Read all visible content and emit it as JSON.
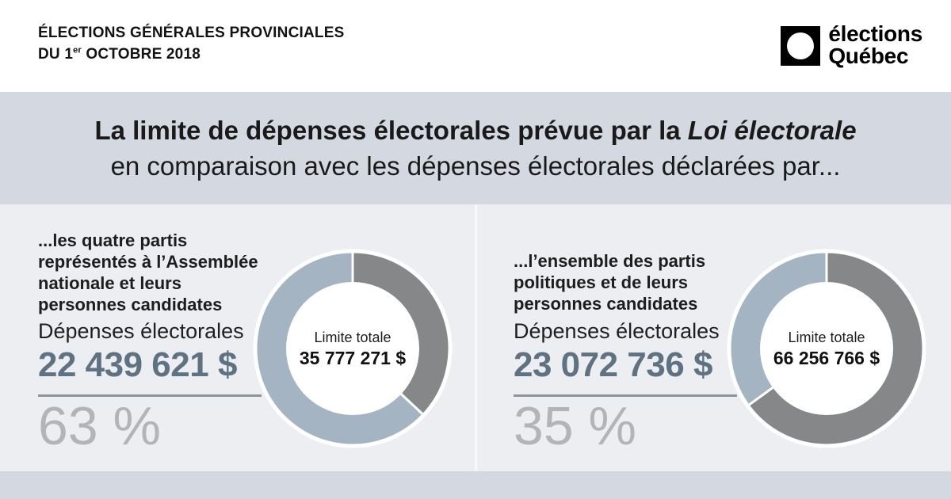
{
  "colors": {
    "band": "#d4d8e0",
    "panel_bg": "#eceef1",
    "panel_gap": "#f7f8f9",
    "value_text": "#5f7282",
    "percent_text": "#b3b4b6",
    "rule": "#8f949b",
    "donut_spent": "#a4b4c2",
    "donut_remainder": "#868788",
    "logo_black": "#000000"
  },
  "header": {
    "kicker_line1": "ÉLECTIONS GÉNÉRALES PROVINCIALES",
    "kicker_line2_prefix": "DU 1",
    "kicker_line2_sup": "er",
    "kicker_line2_suffix": " OCTOBRE 2018",
    "logo": {
      "line1": "élections",
      "line2": "Québec"
    }
  },
  "title": {
    "line1_text": "La limite de dépenses électorales prévue par la ",
    "line1_italic": "Loi électorale",
    "line2": "en comparaison avec les dépenses électorales déclarées par..."
  },
  "panels": [
    {
      "heading_lines": [
        "...les quatre partis",
        "représentés à l’Assemblée",
        "nationale et leurs",
        "personnes candidates"
      ],
      "expenses_label": "Dépenses électorales",
      "expenses_value": "22 439 621 $",
      "percent_label": "63 %",
      "donut": {
        "percent": 63,
        "center_label": "Limite totale",
        "center_value": "35 777 271 $"
      }
    },
    {
      "heading_lines": [
        "...l’ensemble des partis",
        "politiques et de leurs",
        "personnes candidates"
      ],
      "expenses_label": "Dépenses électorales",
      "expenses_value": "23 072 736 $",
      "percent_label": "35 %",
      "donut": {
        "percent": 35,
        "center_label": "Limite totale",
        "center_value": "66 256 766 $"
      }
    }
  ],
  "chart_data": [
    {
      "type": "pie",
      "title": "...les quatre partis représentés à l’Assemblée nationale et leurs personnes candidates",
      "center_label": "Limite totale",
      "center_value": "35 777 271 $",
      "slices": [
        {
          "label": "Dépenses électorales déclarées",
          "percent": 63,
          "amount": "22 439 621 $",
          "color": "#a4b4c2"
        },
        {
          "label": "remainder",
          "percent": 37,
          "color": "#868788"
        }
      ],
      "legend_position": "none"
    },
    {
      "type": "pie",
      "title": "...l’ensemble des partis politiques et de leurs personnes candidates",
      "center_label": "Limite totale",
      "center_value": "66 256 766 $",
      "slices": [
        {
          "label": "Dépenses électorales déclarées",
          "percent": 35,
          "amount": "23 072 736 $",
          "color": "#a4b4c2"
        },
        {
          "label": "remainder",
          "percent": 65,
          "color": "#868788"
        }
      ],
      "legend_position": "none"
    }
  ]
}
